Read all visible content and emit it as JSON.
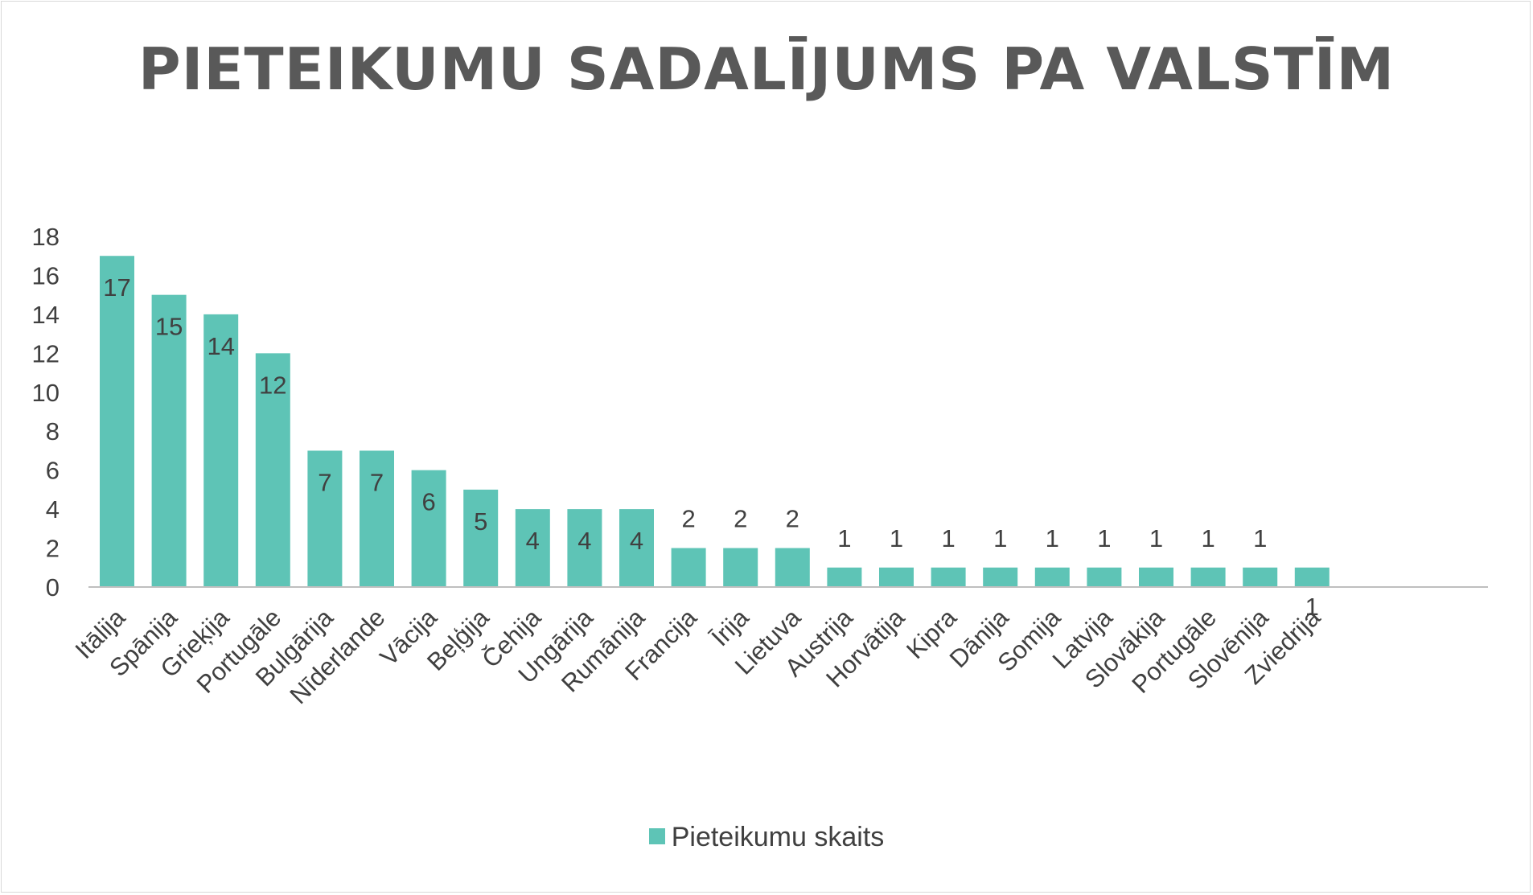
{
  "chart_data": {
    "type": "bar",
    "title": "PIETEIKUMU SADALĪJUMS PA VALSTĪM",
    "categories": [
      "Itālija",
      "Spānija",
      "Grieķija",
      "Portugāle",
      "Bulgārija",
      "Nīderlande",
      "Vācija",
      "Beļģija",
      "Čehija",
      "Ungārija",
      "Rumānija",
      "Francija",
      "Īrija",
      "Lietuva",
      "Austrija",
      "Horvātija",
      "Kipra",
      "Dānija",
      "Somija",
      "Latvija",
      "Slovākija",
      "Portugāle",
      "Slovēnija",
      "Zviedrija"
    ],
    "series": [
      {
        "name": "Pieteikumu skaits",
        "values": [
          17,
          15,
          14,
          12,
          7,
          7,
          6,
          5,
          4,
          4,
          4,
          2,
          2,
          2,
          1,
          1,
          1,
          1,
          1,
          1,
          1,
          1,
          1,
          1
        ],
        "color": "#5ec4b6"
      }
    ],
    "ylim": [
      0,
      18
    ],
    "yticks": [
      0,
      2,
      4,
      6,
      8,
      10,
      12,
      14,
      16,
      18
    ],
    "xlabel": "",
    "ylabel": "",
    "grid": false,
    "legend": "bottom",
    "data_labels": true
  }
}
